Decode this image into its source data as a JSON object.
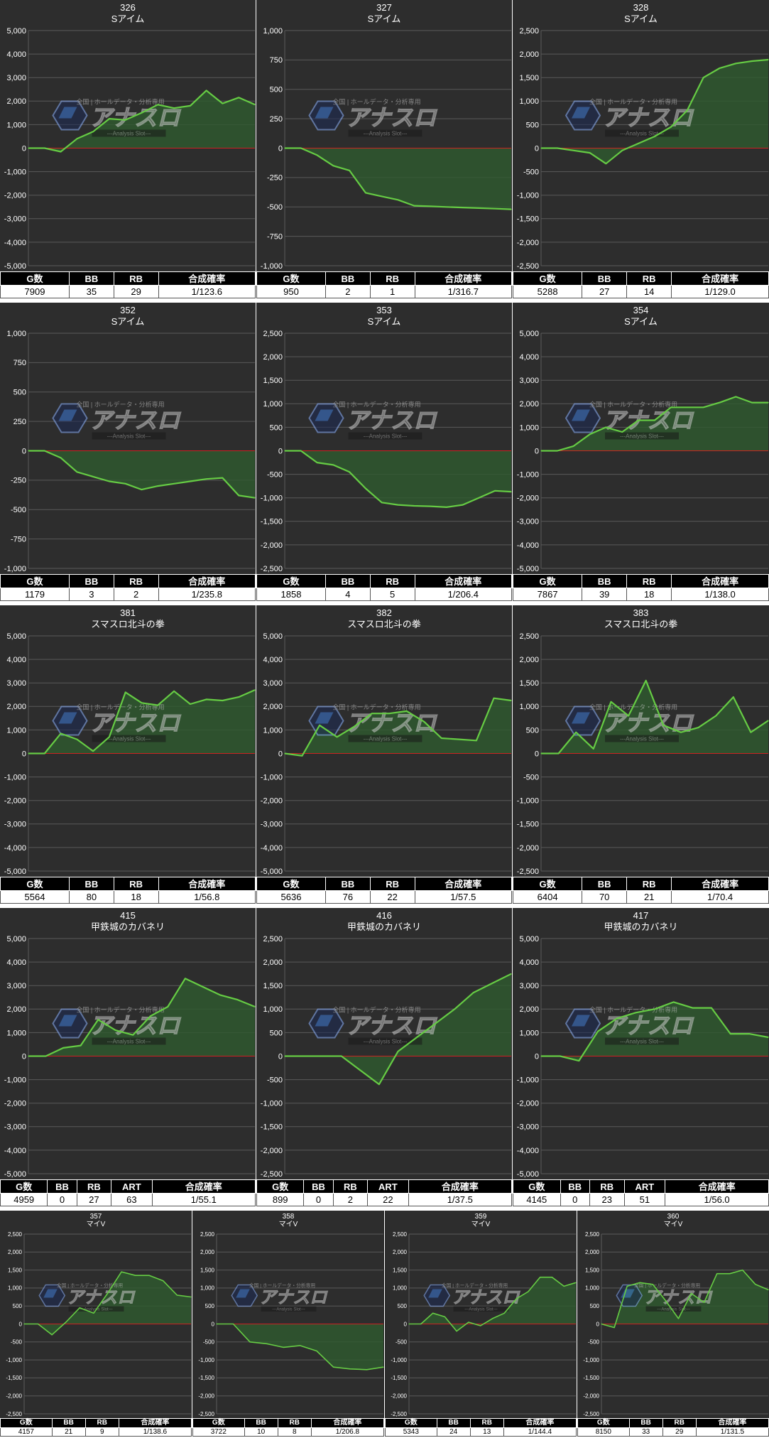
{
  "chart_data": [
    {
      "type": "line",
      "title": "326",
      "subtitle": "Sアイム",
      "ylim": [
        -5000,
        5000
      ],
      "yticks": [
        5000,
        4000,
        3000,
        2000,
        1000,
        0,
        -1000,
        -2000,
        -3000,
        -4000,
        -5000
      ],
      "values": [
        0,
        0,
        -150,
        400,
        700,
        1250,
        1200,
        1500,
        1850,
        1700,
        1800,
        2450,
        1900,
        2150,
        1850
      ],
      "stats": {
        "headers": [
          "G数",
          "BB",
          "RB",
          "合成確率"
        ],
        "values": [
          "7909",
          "35",
          "29",
          "1/123.6"
        ]
      }
    },
    {
      "type": "line",
      "title": "327",
      "subtitle": "Sアイム",
      "ylim": [
        -1000,
        1000
      ],
      "yticks": [
        1000,
        750,
        500,
        250,
        0,
        -250,
        -500,
        -750,
        -1000
      ],
      "values": [
        0,
        0,
        -60,
        -150,
        -190,
        -380,
        -410,
        -440,
        -490,
        -495,
        -500,
        -505,
        -510,
        -515,
        -520
      ],
      "stats": {
        "headers": [
          "G数",
          "BB",
          "RB",
          "合成確率"
        ],
        "values": [
          "950",
          "2",
          "1",
          "1/316.7"
        ]
      }
    },
    {
      "type": "line",
      "title": "328",
      "subtitle": "Sアイム",
      "ylim": [
        -2500,
        2500
      ],
      "yticks": [
        2500,
        2000,
        1500,
        1000,
        500,
        0,
        -500,
        -1000,
        -1500,
        -2000,
        -2500
      ],
      "values": [
        0,
        0,
        -50,
        -100,
        -330,
        -50,
        100,
        250,
        450,
        800,
        1500,
        1700,
        1800,
        1850,
        1880
      ],
      "stats": {
        "headers": [
          "G数",
          "BB",
          "RB",
          "合成確率"
        ],
        "values": [
          "5288",
          "27",
          "14",
          "1/129.0"
        ]
      }
    },
    {
      "type": "line",
      "title": "352",
      "subtitle": "Sアイム",
      "ylim": [
        -1000,
        1000
      ],
      "yticks": [
        1000,
        750,
        500,
        250,
        0,
        -250,
        -500,
        -750,
        -1000
      ],
      "values": [
        0,
        0,
        -60,
        -180,
        -220,
        -260,
        -280,
        -330,
        -300,
        -280,
        -260,
        -240,
        -230,
        -380,
        -400
      ],
      "stats": {
        "headers": [
          "G数",
          "BB",
          "RB",
          "合成確率"
        ],
        "values": [
          "1179",
          "3",
          "2",
          "1/235.8"
        ]
      }
    },
    {
      "type": "line",
      "title": "353",
      "subtitle": "Sアイム",
      "ylim": [
        -2500,
        2500
      ],
      "yticks": [
        2500,
        2000,
        1500,
        1000,
        500,
        0,
        -500,
        -1000,
        -1500,
        -2000,
        -2500
      ],
      "values": [
        0,
        0,
        -250,
        -300,
        -450,
        -800,
        -1100,
        -1150,
        -1170,
        -1180,
        -1200,
        -1150,
        -1000,
        -850,
        -870
      ],
      "stats": {
        "headers": [
          "G数",
          "BB",
          "RB",
          "合成確率"
        ],
        "values": [
          "1858",
          "4",
          "5",
          "1/206.4"
        ]
      }
    },
    {
      "type": "line",
      "title": "354",
      "subtitle": "Sアイム",
      "ylim": [
        -5000,
        5000
      ],
      "yticks": [
        5000,
        4000,
        3000,
        2000,
        1000,
        0,
        -1000,
        -2000,
        -3000,
        -4000,
        -5000
      ],
      "values": [
        0,
        0,
        200,
        700,
        1000,
        800,
        1300,
        1300,
        1850,
        1850,
        1850,
        2050,
        2300,
        2050,
        2050
      ],
      "stats": {
        "headers": [
          "G数",
          "BB",
          "RB",
          "合成確率"
        ],
        "values": [
          "7867",
          "39",
          "18",
          "1/138.0"
        ]
      }
    },
    {
      "type": "line",
      "title": "381",
      "subtitle": "スマスロ北斗の拳",
      "ylim": [
        -5000,
        5000
      ],
      "yticks": [
        5000,
        4000,
        3000,
        2000,
        1000,
        0,
        -1000,
        -2000,
        -3000,
        -4000,
        -5000
      ],
      "values": [
        0,
        0,
        850,
        600,
        100,
        700,
        2600,
        2150,
        2050,
        2650,
        2100,
        2300,
        2250,
        2400,
        2700
      ],
      "stats": {
        "headers": [
          "G数",
          "BB",
          "RB",
          "合成確率"
        ],
        "values": [
          "5564",
          "80",
          "18",
          "1/56.8"
        ]
      }
    },
    {
      "type": "line",
      "title": "382",
      "subtitle": "スマスロ北斗の拳",
      "ylim": [
        -5000,
        5000
      ],
      "yticks": [
        5000,
        4000,
        3000,
        2000,
        1000,
        0,
        -1000,
        -2000,
        -3000,
        -4000,
        -5000
      ],
      "values": [
        0,
        -100,
        1200,
        700,
        1150,
        1700,
        1700,
        1800,
        1350,
        650,
        600,
        550,
        2350,
        2250
      ],
      "stats": {
        "headers": [
          "G数",
          "BB",
          "RB",
          "合成確率"
        ],
        "values": [
          "5636",
          "76",
          "22",
          "1/57.5"
        ]
      }
    },
    {
      "type": "line",
      "title": "383",
      "subtitle": "スマスロ北斗の拳",
      "ylim": [
        -2500,
        2500
      ],
      "yticks": [
        2500,
        2000,
        1500,
        1000,
        500,
        0,
        -500,
        -1000,
        -1500,
        -2000,
        -2500
      ],
      "values": [
        0,
        0,
        450,
        100,
        1100,
        800,
        1550,
        600,
        450,
        550,
        800,
        1200,
        450,
        700
      ],
      "stats": {
        "headers": [
          "G数",
          "BB",
          "RB",
          "合成確率"
        ],
        "values": [
          "6404",
          "70",
          "21",
          "1/70.4"
        ]
      }
    },
    {
      "type": "line",
      "title": "415",
      "subtitle": "甲鉄城のカバネリ",
      "ylim": [
        -5000,
        5000
      ],
      "yticks": [
        5000,
        4000,
        3000,
        2000,
        1000,
        0,
        -1000,
        -2000,
        -3000,
        -4000,
        -5000
      ],
      "values": [
        0,
        0,
        350,
        450,
        1550,
        1100,
        900,
        1700,
        2100,
        3300,
        2950,
        2600,
        2400,
        2100
      ],
      "stats": {
        "headers": [
          "G数",
          "BB",
          "RB",
          "ART",
          "合成確率"
        ],
        "values": [
          "4959",
          "0",
          "27",
          "63",
          "1/55.1"
        ]
      }
    },
    {
      "type": "line",
      "title": "416",
      "subtitle": "甲鉄城のカバネリ",
      "ylim": [
        -2500,
        2500
      ],
      "yticks": [
        2500,
        2000,
        1500,
        1000,
        500,
        0,
        -500,
        -1000,
        -1500,
        -2000,
        -2500
      ],
      "values": [
        0,
        0,
        0,
        0,
        -300,
        -600,
        100,
        400,
        700,
        1000,
        1350,
        1550,
        1750
      ],
      "stats": {
        "headers": [
          "G数",
          "BB",
          "RB",
          "ART",
          "合成確率"
        ],
        "values": [
          "899",
          "0",
          "2",
          "22",
          "1/37.5"
        ]
      }
    },
    {
      "type": "line",
      "title": "417",
      "subtitle": "甲鉄城のカバネリ",
      "ylim": [
        -5000,
        5000
      ],
      "yticks": [
        5000,
        4000,
        3000,
        2000,
        1000,
        0,
        -1000,
        -2000,
        -3000,
        -4000,
        -5000
      ],
      "values": [
        0,
        0,
        -200,
        1050,
        1600,
        1850,
        2000,
        2300,
        2050,
        2050,
        950,
        950,
        800
      ],
      "stats": {
        "headers": [
          "G数",
          "BB",
          "RB",
          "ART",
          "合成確率"
        ],
        "values": [
          "4145",
          "0",
          "23",
          "51",
          "1/56.0"
        ]
      }
    },
    {
      "type": "line",
      "title": "357",
      "subtitle": "マイV",
      "ylim": [
        -2500,
        2500
      ],
      "yticks": [
        2500,
        2000,
        1500,
        1000,
        500,
        0,
        -500,
        -1000,
        -1500,
        -2000,
        -2500
      ],
      "values": [
        0,
        0,
        -300,
        50,
        450,
        300,
        850,
        1450,
        1350,
        1350,
        1200,
        800,
        750
      ],
      "stats": {
        "headers": [
          "G数",
          "BB",
          "RB",
          "合成確率"
        ],
        "values": [
          "4157",
          "21",
          "9",
          "1/138.6"
        ]
      }
    },
    {
      "type": "line",
      "title": "358",
      "subtitle": "マイV",
      "ylim": [
        -2500,
        2500
      ],
      "yticks": [
        2500,
        2000,
        1500,
        1000,
        500,
        0,
        -500,
        -1000,
        -1500,
        -2000,
        -2500
      ],
      "values": [
        0,
        0,
        -500,
        -550,
        -650,
        -600,
        -750,
        -1200,
        -1250,
        -1270,
        -1200
      ],
      "stats": {
        "headers": [
          "G数",
          "BB",
          "RB",
          "合成確率"
        ],
        "values": [
          "3722",
          "10",
          "8",
          "1/206.8"
        ]
      }
    },
    {
      "type": "line",
      "title": "359",
      "subtitle": "マイV",
      "ylim": [
        -2500,
        2500
      ],
      "yticks": [
        2500,
        2000,
        1500,
        1000,
        500,
        0,
        -500,
        -1000,
        -1500,
        -2000,
        -2500
      ],
      "values": [
        0,
        0,
        300,
        200,
        -200,
        50,
        -50,
        150,
        300,
        700,
        900,
        1300,
        1300,
        1050,
        1150
      ],
      "stats": {
        "headers": [
          "G数",
          "BB",
          "RB",
          "合成確率"
        ],
        "values": [
          "5343",
          "24",
          "13",
          "1/144.4"
        ]
      }
    },
    {
      "type": "line",
      "title": "360",
      "subtitle": "マイV",
      "ylim": [
        -2500,
        2500
      ],
      "yticks": [
        2500,
        2000,
        1500,
        1000,
        500,
        0,
        -500,
        -1000,
        -1500,
        -2000,
        -2500
      ],
      "values": [
        0,
        -100,
        1050,
        1150,
        1100,
        650,
        150,
        850,
        600,
        1400,
        1400,
        1500,
        1100,
        950
      ],
      "stats": {
        "headers": [
          "G数",
          "BB",
          "RB",
          "合成確率"
        ],
        "values": [
          "8150",
          "33",
          "29",
          "1/131.5"
        ]
      }
    }
  ],
  "watermark": {
    "brand": "アナスロ",
    "tagline": "Analysis Slot",
    "top_text": "全国 | ホールデータ・分析専用"
  },
  "colors": {
    "background": "#2d2d2d",
    "grid": "#5a5a5a",
    "line": "#66cc44",
    "fill": "#2e5a2e",
    "zero_line": "#cc2222",
    "text": "#ffffff"
  }
}
